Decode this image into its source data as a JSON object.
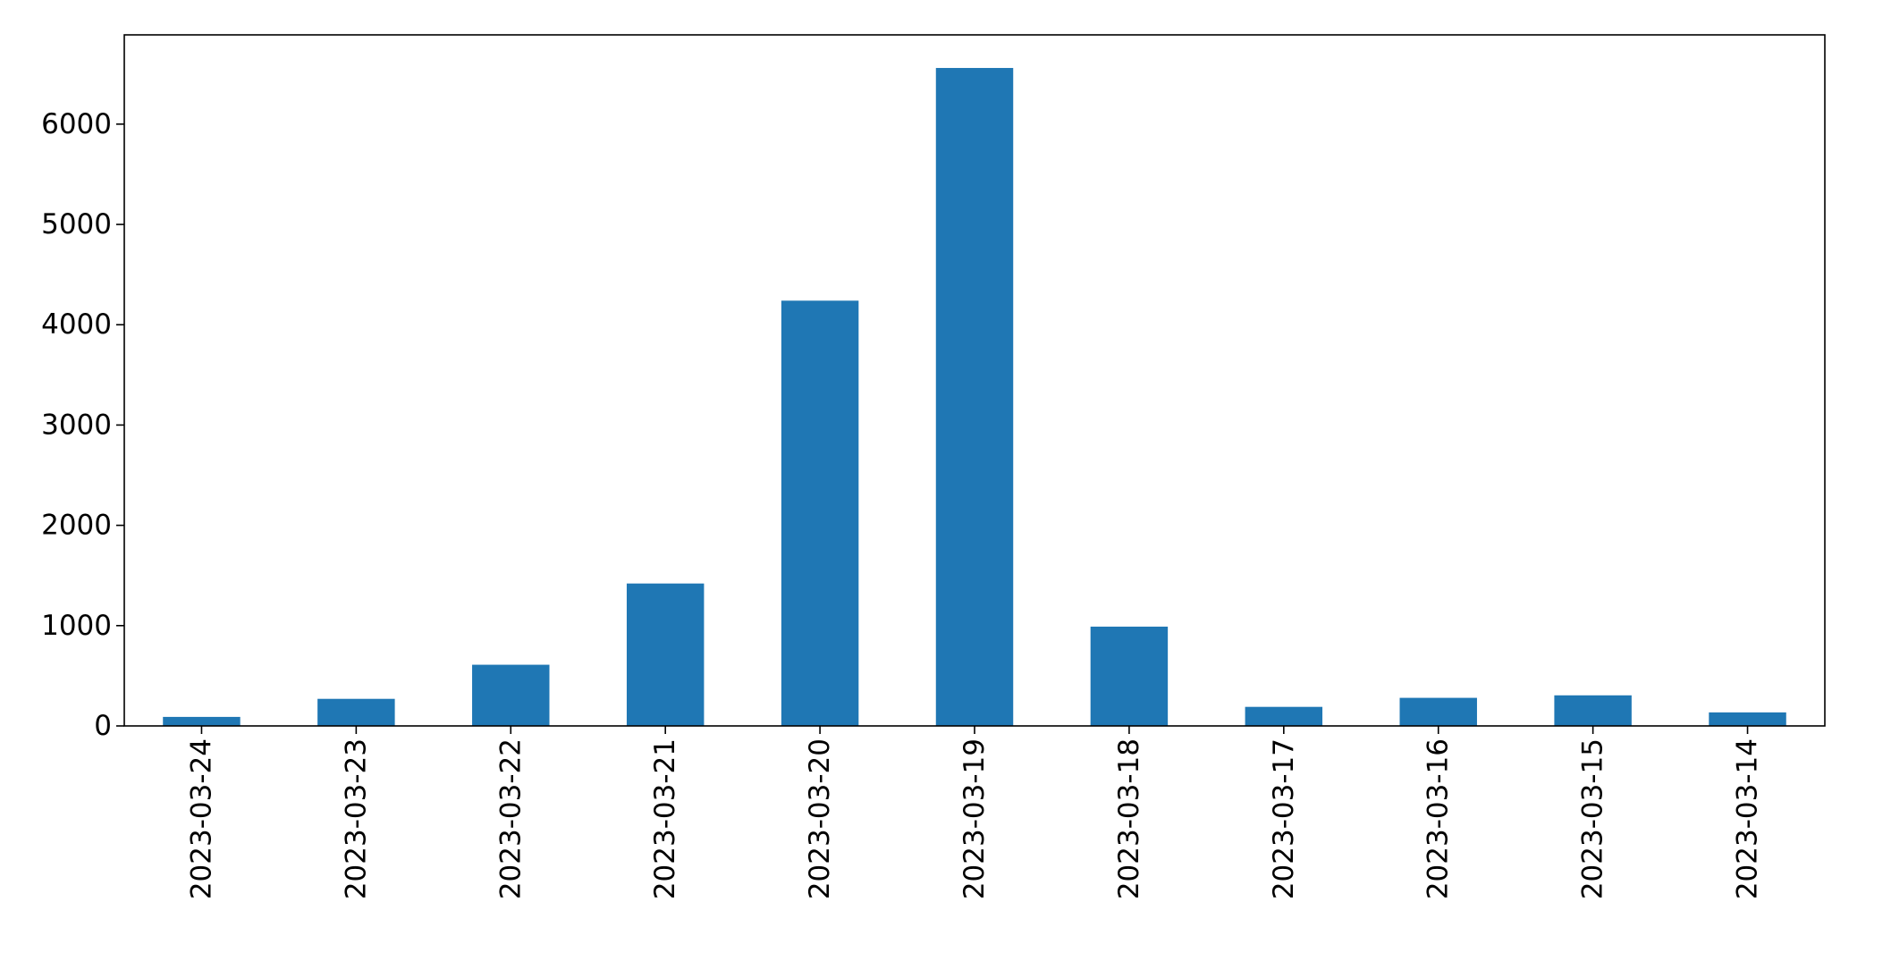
{
  "chart_data": {
    "type": "bar",
    "categories": [
      "2023-03-24",
      "2023-03-23",
      "2023-03-22",
      "2023-03-21",
      "2023-03-20",
      "2023-03-19",
      "2023-03-18",
      "2023-03-17",
      "2023-03-16",
      "2023-03-15",
      "2023-03-14"
    ],
    "values": [
      90,
      270,
      610,
      1420,
      4240,
      6560,
      990,
      190,
      280,
      305,
      135
    ],
    "yticks": [
      0,
      1000,
      2000,
      3000,
      4000,
      5000,
      6000
    ],
    "ylim": [
      0,
      6890
    ],
    "title": "",
    "xlabel": "",
    "ylabel": "",
    "grid": false,
    "legend": "none",
    "bar_color": "#1f77b4"
  }
}
